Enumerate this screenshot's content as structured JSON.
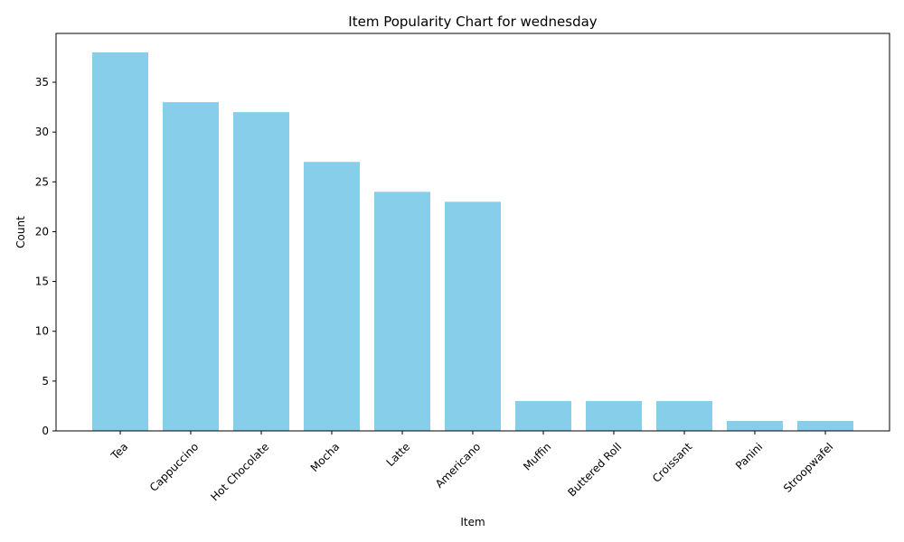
{
  "chart_data": {
    "type": "bar",
    "title": "Item Popularity Chart for wednesday",
    "xlabel": "Item",
    "ylabel": "Count",
    "categories": [
      "Tea",
      "Cappuccino",
      "Hot Chocolate",
      "Mocha",
      "Latte",
      "Americano",
      "Muffin",
      "Buttered Roll",
      "Croissant",
      "Panini",
      "Stroopwafel"
    ],
    "values": [
      38,
      33,
      32,
      27,
      24,
      23,
      3,
      3,
      3,
      1,
      1
    ],
    "ylim": [
      0,
      39.9
    ],
    "yticks": [
      0,
      5,
      10,
      15,
      20,
      25,
      30,
      35
    ],
    "bar_color": "#87ceeb",
    "grid": false,
    "legend": "none"
  }
}
